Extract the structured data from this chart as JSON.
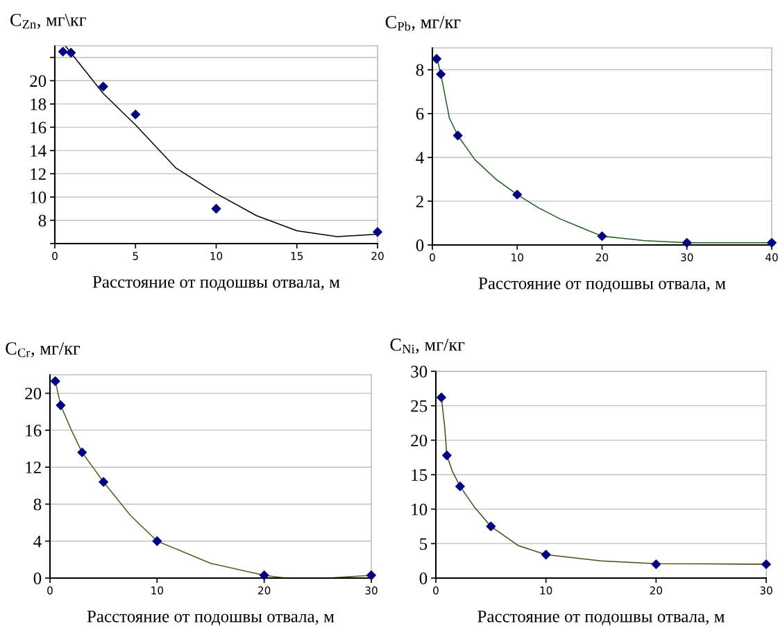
{
  "chart_data": [
    {
      "type": "scatter",
      "ylabel": "C$_{Zn}$, мг\\кг",
      "xlabel": "Расстояние от подошвы отвала, м",
      "xlim": [
        0,
        20
      ],
      "xticks": [
        0,
        5,
        10,
        15,
        20
      ],
      "ylim": [
        6,
        23
      ],
      "yticks": [
        {
          "value": 6,
          "label": null
        },
        8,
        10,
        12,
        14,
        16,
        18,
        20,
        {
          "value": 22,
          "label": null
        }
      ],
      "grid": "y",
      "series": [
        {
          "marker": "diamond",
          "color": "#000080",
          "x": [
            0.5,
            1,
            3,
            5,
            10,
            20
          ],
          "values": [
            22.5,
            22.4,
            19.5,
            17.1,
            9.0,
            7.0
          ]
        },
        {
          "type": "line",
          "marker": "none",
          "color": "#000000",
          "x": [
            0.65,
            3,
            5,
            7.5,
            10,
            12.5,
            15,
            17.5,
            20
          ],
          "values": [
            23,
            18.9,
            16.2,
            12.5,
            10.3,
            8.4,
            7.1,
            6.6,
            6.8
          ]
        }
      ]
    },
    {
      "type": "scatter",
      "ylabel": "C$_{Pb}$, мг/кг",
      "xlabel": "Расстояние от подошвы отвала, м",
      "xlim": [
        0,
        40
      ],
      "xticks": [
        0,
        10,
        20,
        30,
        40
      ],
      "ylim": [
        0,
        9
      ],
      "yticks": [
        0,
        2,
        4,
        6,
        8
      ],
      "grid": "y",
      "series": [
        {
          "marker": "diamond",
          "color": "#000080",
          "x": [
            0.5,
            1,
            3,
            10,
            20,
            30,
            40
          ],
          "values": [
            8.5,
            7.8,
            5.0,
            2.3,
            0.4,
            0.1,
            0.1
          ]
        },
        {
          "type": "line",
          "marker": "none",
          "color": "#1f5f1f",
          "x": [
            0.5,
            1,
            1.5,
            2,
            3,
            5,
            7.5,
            10,
            12.5,
            15,
            17.5,
            20,
            22.5,
            25,
            30,
            35,
            40
          ],
          "values": [
            8.6,
            7.8,
            6.8,
            5.8,
            5.0,
            3.9,
            3.0,
            2.3,
            1.7,
            1.2,
            0.8,
            0.4,
            0.3,
            0.2,
            0.1,
            0.1,
            0.1
          ]
        }
      ]
    },
    {
      "type": "scatter",
      "ylabel": "C$_{Cr}$, мг/кг",
      "xlabel": "Расстояние от подошвы отвала, м",
      "xlim": [
        0,
        30
      ],
      "xticks": [
        0,
        10,
        20,
        30
      ],
      "ylim": [
        0,
        22
      ],
      "yticks": [
        0,
        4,
        8,
        12,
        16,
        20
      ],
      "grid": "y",
      "series": [
        {
          "marker": "diamond",
          "color": "#000080",
          "x": [
            0.5,
            1,
            3,
            5,
            10,
            20,
            30
          ],
          "values": [
            21.3,
            18.7,
            13.6,
            10.4,
            4.0,
            0.3,
            0.3
          ]
        },
        {
          "type": "line",
          "marker": "none",
          "color": "#5a5a1a",
          "x": [
            0.5,
            1,
            2,
            3,
            5,
            7.5,
            10,
            15,
            20,
            22,
            26,
            30
          ],
          "values": [
            21.3,
            18.7,
            16,
            13.6,
            10.4,
            6.8,
            4.0,
            1.6,
            0.3,
            0,
            0,
            0.3
          ]
        }
      ]
    },
    {
      "type": "scatter",
      "ylabel": "C$_{Ni}$, мг/кг",
      "xlabel": "Расстояние от подошвы отвала, м",
      "xlim": [
        0,
        30
      ],
      "xticks": [
        0,
        10,
        20,
        30
      ],
      "ylim": [
        0,
        30
      ],
      "yticks": [
        0,
        5,
        10,
        15,
        20,
        25,
        30
      ],
      "grid": "y",
      "series": [
        {
          "marker": "diamond",
          "color": "#000080",
          "x": [
            0.5,
            1,
            2.2,
            5,
            10,
            20,
            30
          ],
          "values": [
            26.2,
            17.8,
            13.3,
            7.5,
            3.4,
            2.0,
            2.0
          ]
        },
        {
          "type": "line",
          "marker": "none",
          "color": "#4a4a1a",
          "x": [
            0.5,
            0.8,
            1,
            1.5,
            2.2,
            3.5,
            5,
            7.5,
            10,
            15,
            20,
            30
          ],
          "values": [
            26.2,
            22,
            17.8,
            15.5,
            13.3,
            10.3,
            7.5,
            4.7,
            3.4,
            2.5,
            2.1,
            2.0
          ]
        }
      ]
    }
  ]
}
